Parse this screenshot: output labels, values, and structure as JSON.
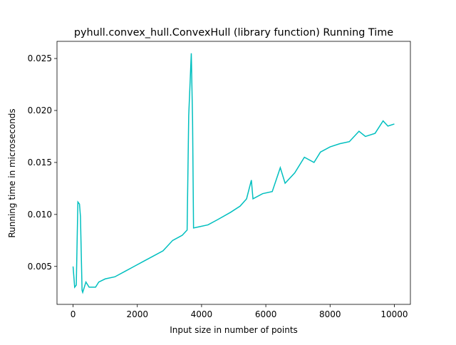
{
  "chart_data": {
    "type": "line",
    "title": "pyhull.convex_hull.ConvexHull (library function) Running Time",
    "x_label": "Input size in number of points",
    "y_label": "Running time in microseconds",
    "x": [
      0,
      50,
      100,
      150,
      200,
      230,
      280,
      300,
      400,
      500,
      700,
      800,
      1000,
      1300,
      1600,
      1900,
      2200,
      2500,
      2800,
      3100,
      3400,
      3550,
      3600,
      3620,
      3680,
      3720,
      3750,
      3900,
      4200,
      4500,
      4900,
      5200,
      5400,
      5550,
      5600,
      5900,
      6200,
      6450,
      6600,
      6900,
      7200,
      7500,
      7700,
      8000,
      8300,
      8600,
      8900,
      9100,
      9400,
      9650,
      9800,
      10000
    ],
    "series": [
      {
        "name": "ConvexHull",
        "color": "#00bfbf",
        "values": [
          0.005,
          0.003,
          0.0032,
          0.0112,
          0.011,
          0.0098,
          0.0027,
          0.0025,
          0.0035,
          0.003,
          0.003,
          0.0035,
          0.0038,
          0.004,
          0.0045,
          0.005,
          0.0055,
          0.006,
          0.0065,
          0.0075,
          0.008,
          0.0085,
          0.0195,
          0.021,
          0.0255,
          0.019,
          0.0087,
          0.0088,
          0.009,
          0.0095,
          0.0102,
          0.0108,
          0.0115,
          0.0133,
          0.0115,
          0.012,
          0.0122,
          0.0145,
          0.013,
          0.014,
          0.0155,
          0.015,
          0.016,
          0.0165,
          0.0168,
          0.017,
          0.018,
          0.0175,
          0.0178,
          0.019,
          0.0185,
          0.0187
        ]
      }
    ],
    "xlim": [
      -500,
      10500
    ],
    "xticks": [
      0,
      2000,
      4000,
      6000,
      8000,
      10000
    ],
    "ylim": [
      0.00135,
      0.02665
    ],
    "yticks": [
      0.005,
      {
        "value": 0.01,
        "label": "0.010"
      },
      0.015,
      {
        "value": 0.02,
        "label": "0.020"
      },
      0.025
    ]
  }
}
